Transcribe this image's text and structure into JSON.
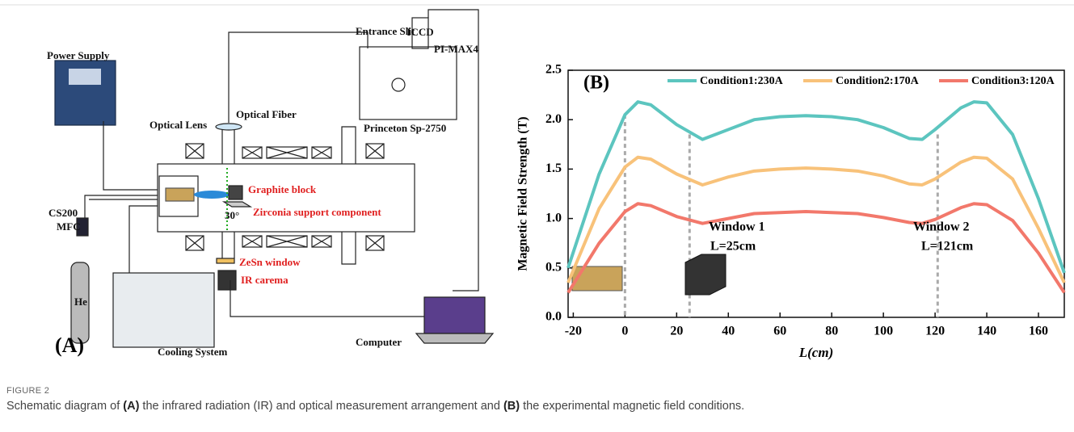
{
  "diagram": {
    "panel_label": "(A)",
    "labels": {
      "power_supply": "Power Supply",
      "entrance_slit": "Entrance Slit",
      "iccd": "ICCD",
      "pi_max": "PI-MAX4",
      "optical_fiber": "Optical Fiber",
      "optical_lens": "Optical Lens",
      "princeton": "Princeton Sp-2750",
      "graphite": "Graphite block",
      "zirconia": "Zirconia support component",
      "angle": "30°",
      "cs200": "CS200",
      "mfc": "MFC",
      "he": "He",
      "zesn": "ZeSn window",
      "ir": "IR carema",
      "cooling": "Cooling System",
      "computer": "Computer"
    }
  },
  "chart_data": {
    "type": "line",
    "panel_label": "(B)",
    "x_label": "L(cm)",
    "y_label": "Magnetic Field Strength (T)",
    "x": [
      -22,
      -10,
      0,
      5,
      10,
      20,
      30,
      40,
      50,
      60,
      70,
      80,
      90,
      100,
      110,
      115,
      120,
      130,
      135,
      140,
      150,
      160,
      170
    ],
    "series": [
      {
        "name": "Condition1:230A",
        "color": "#5cc5bf",
        "values": [
          0.5,
          1.45,
          2.05,
          2.18,
          2.15,
          1.95,
          1.8,
          1.9,
          2.0,
          2.03,
          2.04,
          2.03,
          2.0,
          1.92,
          1.81,
          1.8,
          1.9,
          2.12,
          2.18,
          2.17,
          1.85,
          1.2,
          0.45
        ]
      },
      {
        "name": "Condition2:170A",
        "color": "#f8c27a",
        "values": [
          0.35,
          1.1,
          1.52,
          1.62,
          1.6,
          1.45,
          1.34,
          1.42,
          1.48,
          1.5,
          1.51,
          1.5,
          1.48,
          1.43,
          1.35,
          1.34,
          1.4,
          1.57,
          1.62,
          1.61,
          1.4,
          0.9,
          0.35
        ]
      },
      {
        "name": "Condition3:120A",
        "color": "#f2786b",
        "values": [
          0.25,
          0.75,
          1.07,
          1.15,
          1.13,
          1.02,
          0.95,
          1.0,
          1.05,
          1.06,
          1.07,
          1.06,
          1.05,
          1.01,
          0.96,
          0.95,
          0.99,
          1.11,
          1.15,
          1.14,
          0.98,
          0.65,
          0.25
        ]
      }
    ],
    "xlim": [
      -22,
      170
    ],
    "xticks": [
      -20,
      0,
      20,
      40,
      60,
      80,
      100,
      120,
      140,
      160
    ],
    "ylim": [
      0,
      2.5
    ],
    "yticks": [
      {
        "value": 0,
        "label": "0.0"
      },
      0.5,
      {
        "value": 1,
        "label": "1.0"
      },
      1.5,
      {
        "value": 2,
        "label": "2.0"
      },
      2.5
    ],
    "vlines": [
      0,
      25,
      121
    ],
    "annotations": [
      "Window 1",
      "L=25cm",
      "Window 2",
      "L=121cm"
    ],
    "legend": "top"
  },
  "caption": {
    "label": "FIGURE 2",
    "parts": [
      "Schematic diagram of ",
      "(A)",
      " the infrared radiation (IR) and optical measurement arrangement and ",
      "(B)",
      " the experimental magnetic field conditions."
    ]
  }
}
